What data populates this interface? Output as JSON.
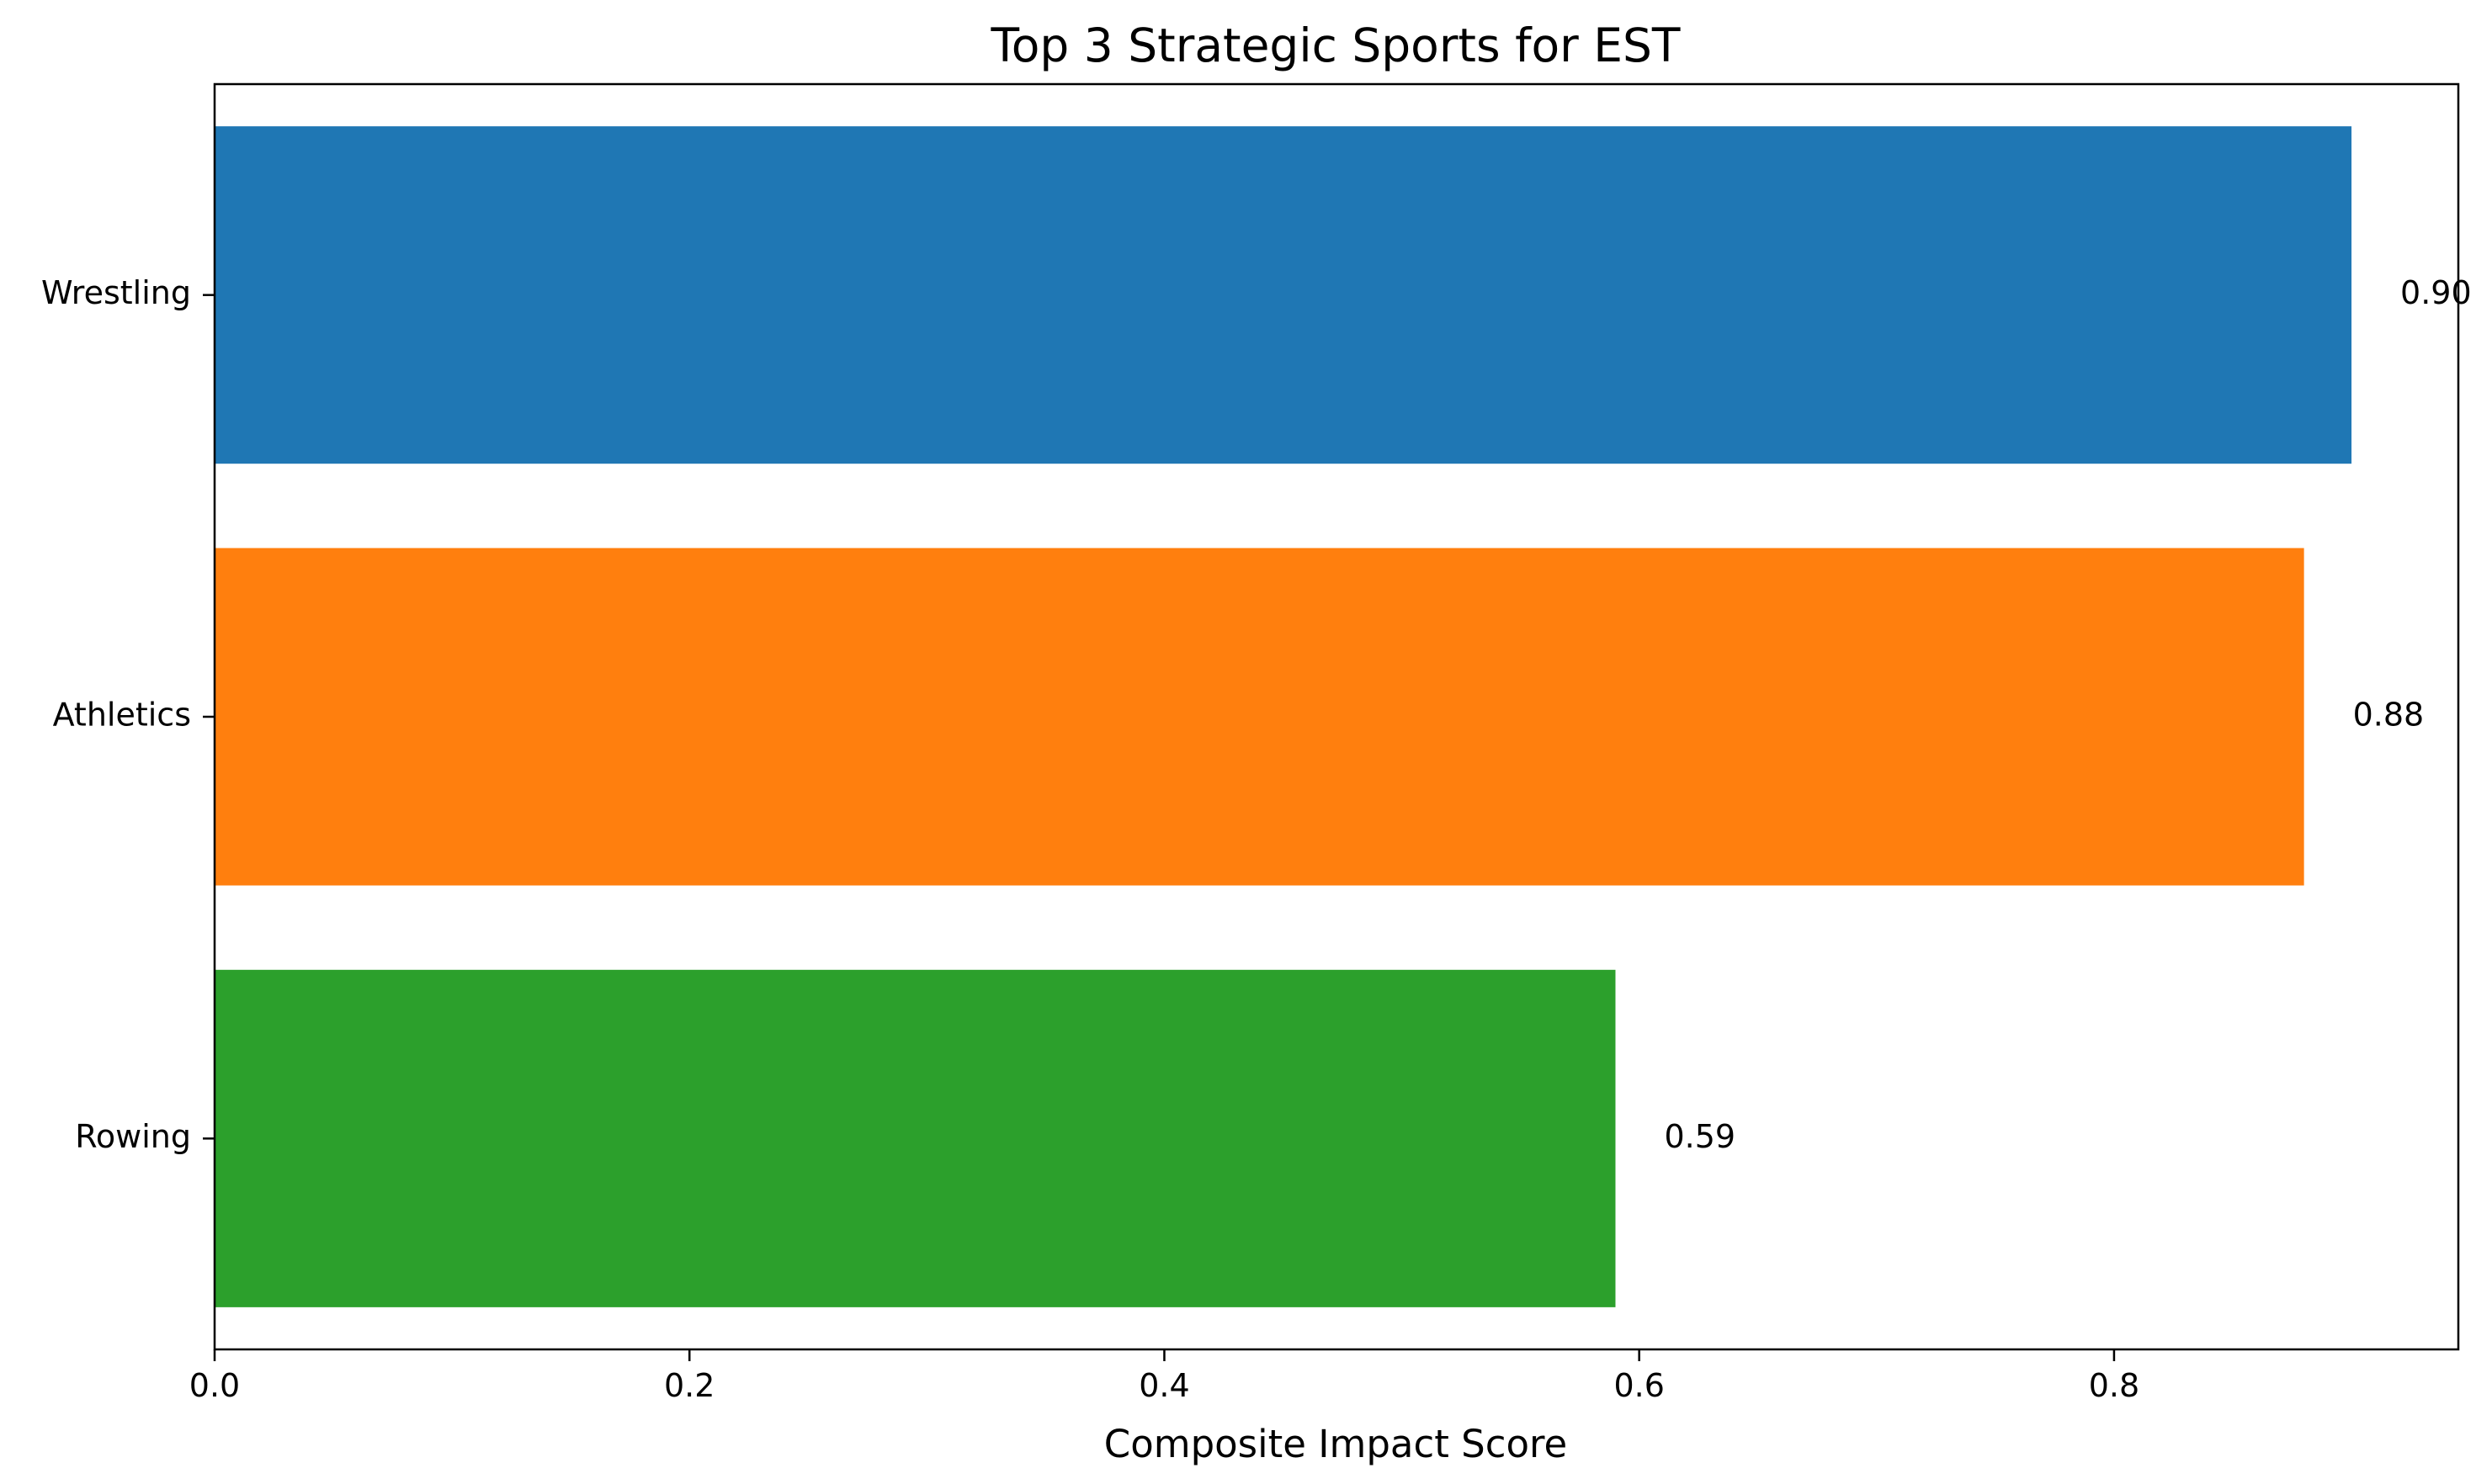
{
  "chart_data": {
    "type": "bar",
    "orientation": "horizontal",
    "title": "Top 3 Strategic Sports for EST",
    "xlabel": "Composite Impact Score",
    "ylabel": "",
    "categories": [
      "Wrestling",
      "Athletics",
      "Rowing"
    ],
    "values": [
      0.9,
      0.88,
      0.59
    ],
    "value_labels": [
      "0.90",
      "0.88",
      "0.59"
    ],
    "colors": [
      "#1f77b4",
      "#ff7f0e",
      "#2ca02c"
    ],
    "xlim": [
      0,
      0.945
    ],
    "xticks": [
      0,
      0.2,
      0.4,
      0.6,
      0.8
    ],
    "xtick_labels": [
      "0.0",
      "0.2",
      "0.4",
      "0.6",
      "0.8"
    ],
    "grid": false,
    "legend": "none"
  }
}
